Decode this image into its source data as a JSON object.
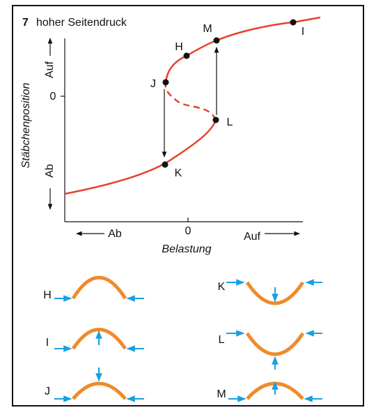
{
  "figure": {
    "number": "7",
    "title": "hoher Seitendruck"
  },
  "graph": {
    "y_axis": {
      "label": "Stäbchenposition",
      "top": "Auf",
      "zero": "0",
      "bottom": "Ab"
    },
    "x_axis": {
      "label": "Belastung",
      "left": "Ab",
      "zero": "0",
      "right": "Auf"
    },
    "points": [
      {
        "label": "H"
      },
      {
        "label": "M"
      },
      {
        "label": "I"
      },
      {
        "label": "J"
      },
      {
        "label": "L"
      },
      {
        "label": "K"
      }
    ]
  },
  "panels": [
    {
      "label": "H"
    },
    {
      "label": "I"
    },
    {
      "label": "J"
    },
    {
      "label": "K"
    },
    {
      "label": "L"
    },
    {
      "label": "M"
    }
  ]
}
